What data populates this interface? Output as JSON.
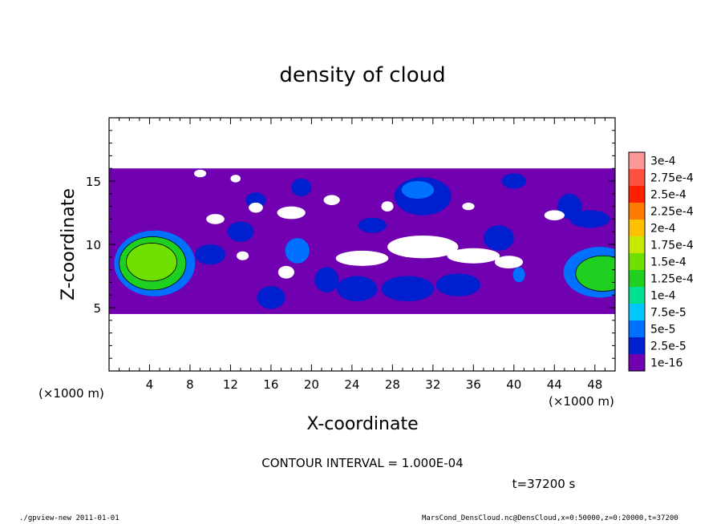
{
  "chart_data": {
    "type": "heatmap",
    "title": "density of cloud",
    "xlabel": "X-coordinate",
    "ylabel": "Z-coordinate",
    "x_unit_label": "(×1000 m)",
    "x_ticks": [
      4,
      8,
      12,
      16,
      20,
      24,
      28,
      32,
      36,
      40,
      44,
      48
    ],
    "y_ticks": [
      5,
      10,
      15
    ],
    "xlim": [
      0,
      50
    ],
    "ylim": [
      0,
      20
    ],
    "colorbar": {
      "labels": [
        "3e-4",
        "2.75e-4",
        "2.5e-4",
        "2.25e-4",
        "2e-4",
        "1.75e-4",
        "1.5e-4",
        "1.25e-4",
        "1e-4",
        "7.5e-5",
        "5e-5",
        "2.5e-5",
        "1e-16"
      ],
      "colors": [
        "#ff9999",
        "#ff5040",
        "#ff2000",
        "#ff7a00",
        "#ffc000",
        "#c8e800",
        "#70e000",
        "#20d020",
        "#00e090",
        "#00c8ff",
        "#0070ff",
        "#0020d0",
        "#7000b0"
      ]
    },
    "regions": [
      {
        "kind": "band",
        "x0": 0,
        "x1": 50,
        "z0": 4.5,
        "z1": 16.0,
        "level": 0
      },
      {
        "kind": "blob",
        "cx": 4.5,
        "cz": 8.5,
        "rx": 4.0,
        "rz": 2.6,
        "level": 2
      },
      {
        "kind": "blob",
        "cx": 4.3,
        "cz": 8.5,
        "rx": 3.3,
        "rz": 2.1,
        "level": 5
      },
      {
        "kind": "blob",
        "cx": 4.2,
        "cz": 8.6,
        "rx": 2.5,
        "rz": 1.5,
        "level": 6
      },
      {
        "kind": "blob",
        "cx": 48.5,
        "cz": 7.8,
        "rx": 3.6,
        "rz": 2.0,
        "level": 2
      },
      {
        "kind": "blob",
        "cx": 48.8,
        "cz": 7.7,
        "rx": 2.7,
        "rz": 1.4,
        "level": 5
      },
      {
        "kind": "blob",
        "cx": 31.0,
        "cz": 13.8,
        "rx": 2.8,
        "rz": 1.5,
        "level": 1
      },
      {
        "kind": "blob",
        "cx": 30.5,
        "cz": 14.3,
        "rx": 1.6,
        "rz": 0.7,
        "level": 2
      },
      {
        "kind": "blob",
        "cx": 18.6,
        "cz": 9.5,
        "rx": 1.2,
        "rz": 1.0,
        "level": 2
      },
      {
        "kind": "blob",
        "cx": 16.0,
        "cz": 5.8,
        "rx": 1.4,
        "rz": 0.9,
        "level": 1
      },
      {
        "kind": "blob",
        "cx": 21.5,
        "cz": 7.2,
        "rx": 1.2,
        "rz": 1.0,
        "level": 1
      },
      {
        "kind": "blob",
        "cx": 24.5,
        "cz": 6.5,
        "rx": 2.0,
        "rz": 1.0,
        "level": 1
      },
      {
        "kind": "blob",
        "cx": 29.5,
        "cz": 6.5,
        "rx": 2.6,
        "rz": 1.0,
        "level": 1
      },
      {
        "kind": "blob",
        "cx": 34.5,
        "cz": 6.8,
        "rx": 2.2,
        "rz": 0.9,
        "level": 1
      },
      {
        "kind": "blob",
        "cx": 40.5,
        "cz": 7.6,
        "rx": 0.6,
        "rz": 0.6,
        "level": 2
      },
      {
        "kind": "blob",
        "cx": 10.0,
        "cz": 9.2,
        "rx": 1.5,
        "rz": 0.8,
        "level": 1
      },
      {
        "kind": "blob",
        "cx": 38.5,
        "cz": 10.5,
        "rx": 1.5,
        "rz": 1.0,
        "level": 1
      },
      {
        "kind": "blob",
        "cx": 45.5,
        "cz": 13.0,
        "rx": 1.2,
        "rz": 1.0,
        "level": 1
      },
      {
        "kind": "blob",
        "cx": 19.0,
        "cz": 14.5,
        "rx": 1.0,
        "rz": 0.7,
        "level": 1
      },
      {
        "kind": "blob",
        "cx": 13.0,
        "cz": 11.0,
        "rx": 1.3,
        "rz": 0.8,
        "level": 1
      },
      {
        "kind": "blob",
        "cx": 40.0,
        "cz": 15.0,
        "rx": 1.2,
        "rz": 0.6,
        "level": 1
      },
      {
        "kind": "blob",
        "cx": 26.0,
        "cz": 11.5,
        "rx": 1.4,
        "rz": 0.6,
        "level": 1
      },
      {
        "kind": "blob",
        "cx": 47.5,
        "cz": 12.0,
        "rx": 2.0,
        "rz": 0.7,
        "level": 1
      },
      {
        "kind": "blob",
        "cx": 14.5,
        "cz": 13.5,
        "rx": 1.0,
        "rz": 0.6,
        "level": 1
      },
      {
        "kind": "gap",
        "cx": 31.0,
        "cz": 9.8,
        "rx": 3.5,
        "rz": 0.9
      },
      {
        "kind": "gap",
        "cx": 25.0,
        "cz": 8.9,
        "rx": 2.6,
        "rz": 0.6
      },
      {
        "kind": "gap",
        "cx": 36.0,
        "cz": 9.1,
        "rx": 2.6,
        "rz": 0.6
      },
      {
        "kind": "gap",
        "cx": 39.5,
        "cz": 8.6,
        "rx": 1.4,
        "rz": 0.5
      },
      {
        "kind": "gap",
        "cx": 18.0,
        "cz": 12.5,
        "rx": 1.4,
        "rz": 0.5
      },
      {
        "kind": "gap",
        "cx": 10.5,
        "cz": 12.0,
        "rx": 0.9,
        "rz": 0.4
      },
      {
        "kind": "gap",
        "cx": 14.5,
        "cz": 12.9,
        "rx": 0.7,
        "rz": 0.4
      },
      {
        "kind": "gap",
        "cx": 22.0,
        "cz": 13.5,
        "rx": 0.8,
        "rz": 0.4
      },
      {
        "kind": "gap",
        "cx": 9.0,
        "cz": 15.6,
        "rx": 0.6,
        "rz": 0.3
      },
      {
        "kind": "gap",
        "cx": 44.0,
        "cz": 12.3,
        "rx": 1.0,
        "rz": 0.4
      },
      {
        "kind": "gap",
        "cx": 35.5,
        "cz": 13.0,
        "rx": 0.6,
        "rz": 0.3
      },
      {
        "kind": "gap",
        "cx": 17.5,
        "cz": 7.8,
        "rx": 0.8,
        "rz": 0.5
      },
      {
        "kind": "gap",
        "cx": 13.2,
        "cz": 9.1,
        "rx": 0.6,
        "rz": 0.35
      },
      {
        "kind": "gap",
        "cx": 27.5,
        "cz": 13.0,
        "rx": 0.6,
        "rz": 0.4
      },
      {
        "kind": "gap",
        "cx": 12.5,
        "cz": 15.2,
        "rx": 0.5,
        "rz": 0.3
      }
    ]
  },
  "annotations": {
    "contour_interval": "CONTOUR INTERVAL = 1.000E-04",
    "time": "t=37200 s"
  },
  "footer": {
    "left": "./gpview-new   2011-01-01",
    "right": "MarsCond_DensCloud.nc@DensCloud,x=0:50000,z=0:20000,t=37200"
  }
}
